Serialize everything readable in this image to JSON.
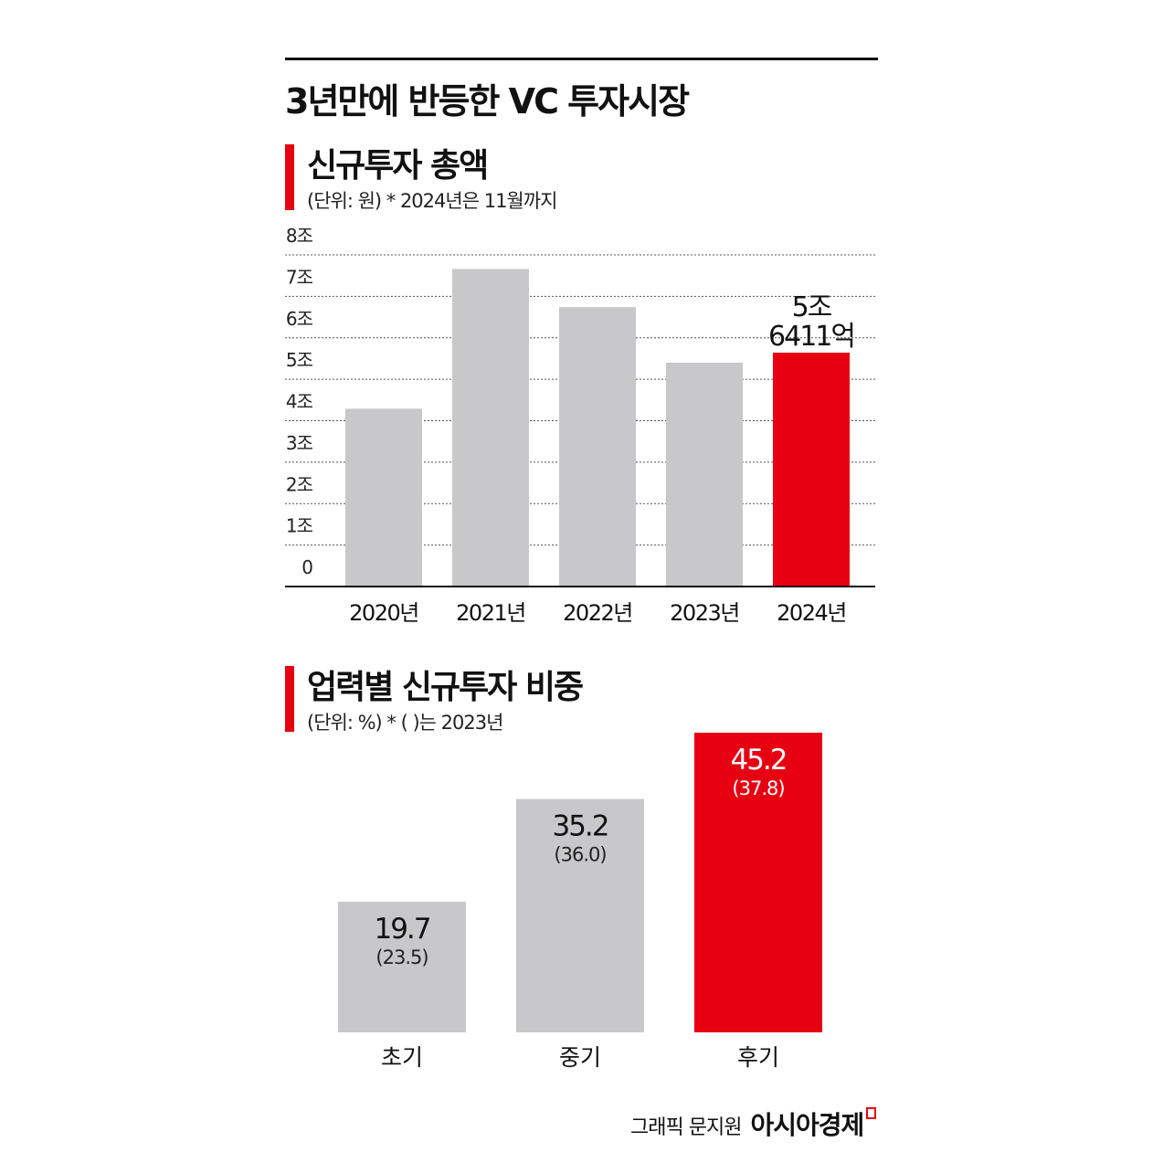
{
  "title": "3년만에 반등한 VC 투자시장",
  "colors": {
    "accent": "#e60012",
    "bar": "#c8c8ca"
  },
  "chart_data": [
    {
      "type": "bar",
      "title": "신규투자 총액",
      "subtitle": "(단위: 원)  * 2024년은 11월까지",
      "categories": [
        "2020년",
        "2021년",
        "2022년",
        "2023년",
        "2024년"
      ],
      "values": [
        4.29,
        7.66,
        6.74,
        5.4,
        5.6411
      ],
      "highlight_index": 4,
      "data_labels": [
        {
          "index": 4,
          "lines": [
            "5조",
            "6411억"
          ]
        }
      ],
      "yticks": [
        "0",
        "1조",
        "2조",
        "3조",
        "4조",
        "5조",
        "6조",
        "7조",
        "8조"
      ],
      "ylim": [
        0,
        8
      ],
      "unit": "조 원",
      "grid": true
    },
    {
      "type": "bar",
      "title": "업력별 신규투자 비중",
      "subtitle": "(단위: %)  * ( )는 2023년",
      "categories": [
        "초기",
        "중기",
        "후기"
      ],
      "series": [
        {
          "values": [
            19.7,
            35.2,
            45.2
          ]
        },
        {
          "values": [
            23.5,
            36.0,
            37.8
          ]
        }
      ],
      "value_labels": [
        "19.7",
        "35.2",
        "45.2"
      ],
      "prev_labels": [
        "(23.5)",
        "(36.0)",
        "(37.8)"
      ],
      "highlight_index": 2,
      "grid": false
    }
  ],
  "credit": {
    "text": "그래픽 문지원",
    "logo": "아시아경제"
  }
}
